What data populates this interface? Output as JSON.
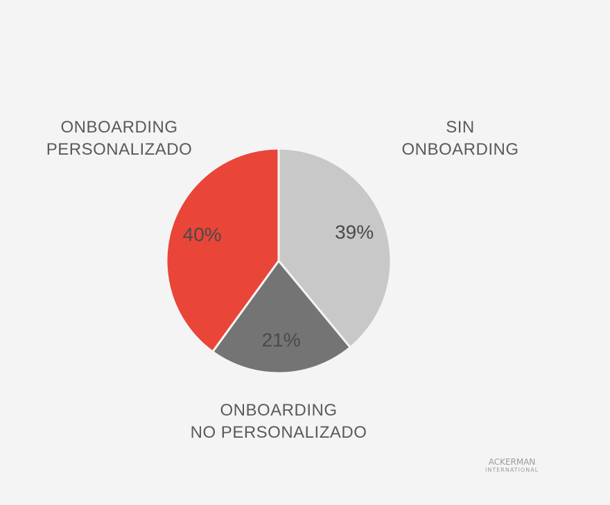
{
  "chart_data": {
    "type": "pie",
    "categories": [
      "SIN ONBOARDING",
      "ONBOARDING\nNO PERSONALIZADO",
      "ONBOARDING\nPERSONALIZADO"
    ],
    "values": [
      39,
      21,
      40
    ],
    "value_labels": [
      "39%",
      "21%",
      "40%"
    ],
    "colors": [
      "#c8c8c8",
      "#747474",
      "#e94539"
    ]
  },
  "logo": {
    "line1": "ACKERMAN",
    "line2": "INTERNATIONAL"
  }
}
